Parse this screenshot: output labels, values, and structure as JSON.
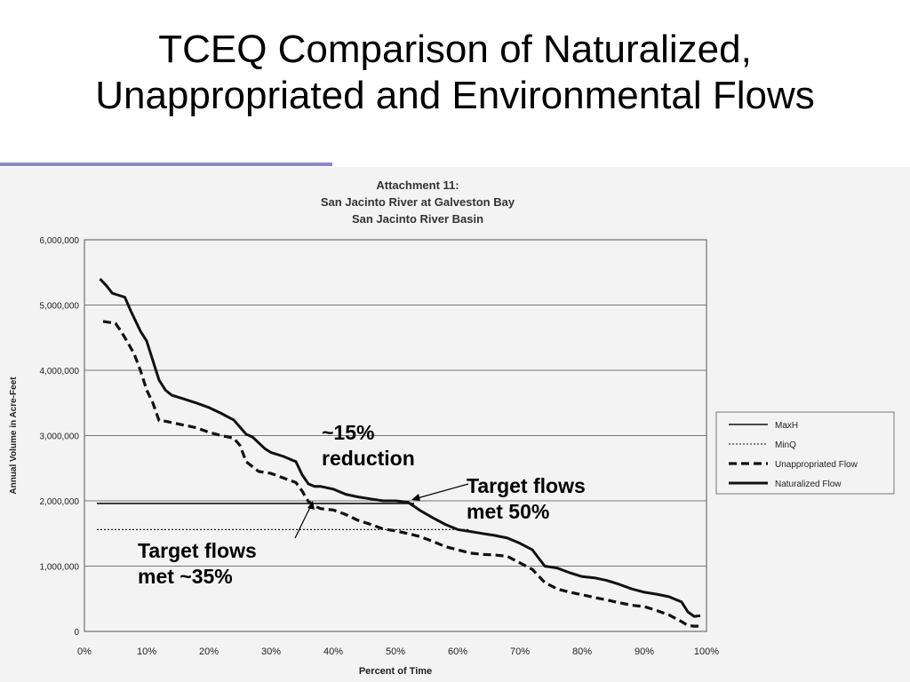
{
  "slide": {
    "title_line1": "TCEQ Comparison of Naturalized,",
    "title_line2": "Unappropriated and Environmental Flows"
  },
  "colors": {
    "accent_rule": "#8b86d0",
    "line": "#111111"
  },
  "annotations": {
    "reduction_line1": "~15%",
    "reduction_line2": "reduction",
    "met50_line1": "Target flows",
    "met50_line2": "met 50%",
    "met35_line1": "Target flows",
    "met35_line2": "met ~35%"
  },
  "chart_data": {
    "type": "line",
    "title": "Attachment 11:",
    "subtitle_line1": "San Jacinto River at Galveston Bay",
    "subtitle_line2": "San Jacinto River Basin",
    "xlabel": "Percent of Time",
    "ylabel": "Annual Volume in Acre-Feet",
    "xlim": [
      0,
      100
    ],
    "ylim": [
      0,
      6000000
    ],
    "x_ticks": [
      0,
      10,
      20,
      30,
      40,
      50,
      60,
      70,
      80,
      90,
      100
    ],
    "x_tick_labels": [
      "0%",
      "10%",
      "20%",
      "30%",
      "40%",
      "50%",
      "60%",
      "70%",
      "80%",
      "90%",
      "100%"
    ],
    "y_ticks": [
      0,
      1000000,
      2000000,
      3000000,
      4000000,
      5000000,
      6000000
    ],
    "y_tick_labels": [
      "0",
      "1,000,000",
      "2,000,000",
      "3,000,000",
      "4,000,000",
      "5,000,000",
      "6,000,000"
    ],
    "grid": true,
    "legend_position": "right",
    "series": [
      {
        "name": "MaxH",
        "style": "solid-thin",
        "x": [
          2,
          53
        ],
        "y": [
          1960000,
          1960000
        ]
      },
      {
        "name": "MinQ",
        "style": "dotted-thin",
        "x": [
          2,
          62
        ],
        "y": [
          1560000,
          1560000
        ]
      },
      {
        "name": "Unappropriated Flow",
        "style": "dashed",
        "x": [
          3,
          5,
          6,
          7,
          8,
          9,
          10,
          11,
          12,
          13,
          15,
          18,
          20,
          22,
          24,
          25,
          26,
          28,
          30,
          32,
          34,
          35,
          36,
          37,
          38,
          40,
          42,
          44,
          46,
          48,
          50,
          52,
          54,
          56,
          58,
          60,
          62,
          64,
          66,
          68,
          70,
          72,
          74,
          76,
          78,
          80,
          82,
          84,
          86,
          88,
          90,
          92,
          94,
          96,
          97,
          98,
          99
        ],
        "y": [
          4750000,
          4720000,
          4580000,
          4420000,
          4250000,
          4000000,
          3700000,
          3500000,
          3230000,
          3220000,
          3180000,
          3120000,
          3050000,
          3000000,
          2960000,
          2850000,
          2600000,
          2450000,
          2420000,
          2350000,
          2280000,
          2150000,
          1990000,
          1920000,
          1880000,
          1860000,
          1790000,
          1700000,
          1640000,
          1570000,
          1540000,
          1500000,
          1450000,
          1380000,
          1300000,
          1250000,
          1200000,
          1180000,
          1170000,
          1150000,
          1050000,
          950000,
          750000,
          650000,
          600000,
          560000,
          520000,
          480000,
          440000,
          400000,
          380000,
          320000,
          250000,
          150000,
          90000,
          80000,
          80000
        ]
      },
      {
        "name": "Naturalized Flow",
        "style": "solid-thick",
        "x": [
          2.5,
          3.5,
          4.5,
          5.5,
          6.5,
          7.5,
          9,
          10,
          11,
          12,
          13,
          14,
          16,
          18,
          20,
          22,
          24,
          26,
          27,
          29,
          30,
          32,
          34,
          35,
          36,
          37,
          38,
          40,
          42,
          44,
          46,
          48,
          50,
          52,
          54,
          56,
          58,
          60,
          62,
          64,
          66,
          68,
          70,
          72,
          74,
          76,
          78,
          80,
          82,
          84,
          86,
          88,
          90,
          92,
          94,
          96,
          97,
          98,
          99
        ],
        "y": [
          5400000,
          5300000,
          5180000,
          5150000,
          5120000,
          4900000,
          4600000,
          4450000,
          4150000,
          3850000,
          3700000,
          3620000,
          3560000,
          3500000,
          3430000,
          3340000,
          3240000,
          3020000,
          2980000,
          2800000,
          2740000,
          2680000,
          2600000,
          2400000,
          2260000,
          2220000,
          2220000,
          2180000,
          2100000,
          2060000,
          2030000,
          2000000,
          2000000,
          1980000,
          1850000,
          1740000,
          1640000,
          1560000,
          1530000,
          1500000,
          1470000,
          1430000,
          1350000,
          1250000,
          1000000,
          970000,
          900000,
          840000,
          820000,
          780000,
          720000,
          650000,
          600000,
          570000,
          530000,
          450000,
          300000,
          230000,
          240000
        ]
      }
    ]
  }
}
